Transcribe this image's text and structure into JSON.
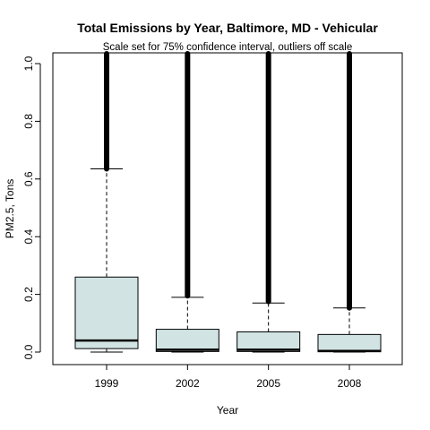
{
  "chart_data": {
    "type": "boxplot",
    "title": "Total Emissions by Year, Baltimore, MD - Vehicular",
    "subtitle": "Scale set for 75% confidence interval, outliers off scale",
    "xlabel": "Year",
    "ylabel": "PM2.5, Tons",
    "categories": [
      "1999",
      "2002",
      "2005",
      "2008"
    ],
    "ylim": [
      -0.04,
      1.04
    ],
    "yticks": [
      "0.0",
      "0.2",
      "0.4",
      "0.6",
      "0.8",
      "1.0"
    ],
    "ytick_values": [
      0.0,
      0.2,
      0.4,
      0.6,
      0.8,
      1.0
    ],
    "boxes": [
      {
        "category": "1999",
        "min": 0.0,
        "q1": 0.012,
        "median": 0.04,
        "q3": 0.26,
        "whisker_high": 0.635,
        "outliers_from": 0.635
      },
      {
        "category": "2002",
        "min": 0.0,
        "q1": 0.002,
        "median": 0.008,
        "q3": 0.079,
        "whisker_high": 0.19,
        "outliers_from": 0.195
      },
      {
        "category": "2005",
        "min": 0.0,
        "q1": 0.002,
        "median": 0.008,
        "q3": 0.07,
        "whisker_high": 0.17,
        "outliers_from": 0.175
      },
      {
        "category": "2008",
        "min": 0.0,
        "q1": 0.001,
        "median": 0.004,
        "q3": 0.061,
        "whisker_high": 0.153,
        "outliers_from": 0.153
      }
    ],
    "box_fill": "#d1e3e3",
    "outlier_color": "#000000",
    "grid": false,
    "legend": "none"
  }
}
